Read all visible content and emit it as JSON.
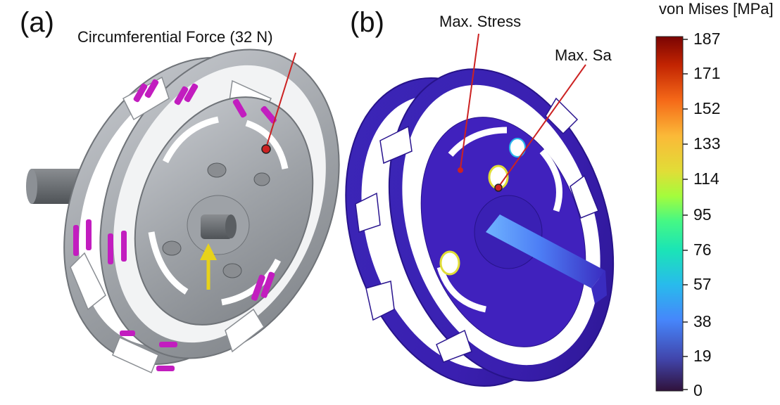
{
  "panels": {
    "a": {
      "label": "(a)",
      "callout": "Circumferential Force (32 N)",
      "load_arrow_color": "#e7d21a",
      "force_marker_color": "#c21dbf"
    },
    "b": {
      "label": "(b)",
      "callouts": {
        "max_stress": "Max. Stress",
        "max_sa": "Max. Sa"
      }
    }
  },
  "colorbar": {
    "title": "von Mises [MPa]",
    "ticks": [
      "187",
      "171",
      "152",
      "133",
      "114",
      "95",
      "76",
      "57",
      "38",
      "19",
      "0"
    ],
    "colormap": [
      "#7a0403",
      "#c22402",
      "#f56918",
      "#fbb938",
      "#e1dd37",
      "#a4fc3c",
      "#46f884",
      "#1be5b5",
      "#28bbec",
      "#4686fb",
      "#4145ab",
      "#30123b"
    ]
  },
  "colors": {
    "steel": "#a9acb1",
    "steel_dark": "#6f7378",
    "fea_body": "#3a1fb0",
    "fea_hot": "#2a9df4",
    "callout_line": "#cc2222"
  }
}
